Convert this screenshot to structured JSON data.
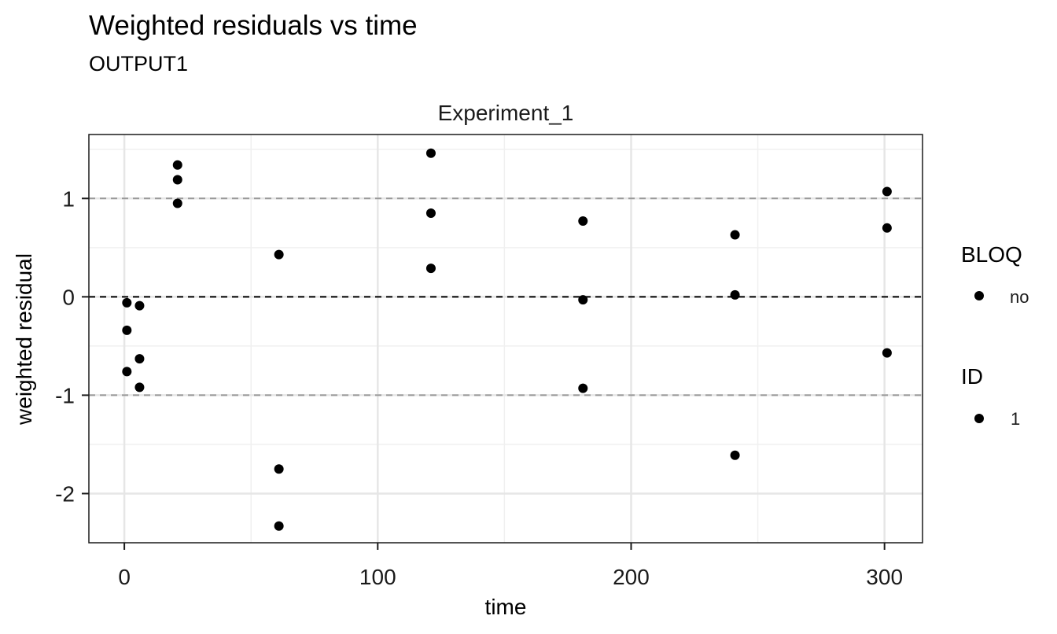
{
  "chart_data": {
    "type": "scatter",
    "title": "Weighted residuals vs time",
    "subtitle": "OUTPUT1",
    "facet_label": "Experiment_1",
    "xlabel": "time",
    "ylabel": "weighted residual",
    "xlim": [
      -14,
      315
    ],
    "ylim": [
      -2.5,
      1.65
    ],
    "x_ticks": [
      0,
      100,
      200,
      300
    ],
    "x_tick_labels": [
      "0",
      "100",
      "200",
      "300"
    ],
    "y_ticks": [
      1,
      0,
      -1,
      -2
    ],
    "y_tick_labels": [
      "1",
      "0",
      "-1",
      "-2"
    ],
    "grid": true,
    "reference_lines": [
      {
        "y": 1,
        "style": "dashed",
        "color": "#999999"
      },
      {
        "y": 0,
        "style": "dashed",
        "color": "#000000"
      },
      {
        "y": -1,
        "style": "dashed",
        "color": "#999999"
      }
    ],
    "point_color": "#000000",
    "legend_position": "right",
    "legends": [
      {
        "title": "BLOQ",
        "entries": [
          "no"
        ]
      },
      {
        "title": "ID",
        "entries": [
          "1"
        ]
      }
    ],
    "series": [
      {
        "points": [
          {
            "x": 1,
            "y": -0.06
          },
          {
            "x": 1,
            "y": -0.34
          },
          {
            "x": 1,
            "y": -0.76
          },
          {
            "x": 6,
            "y": -0.09
          },
          {
            "x": 6,
            "y": -0.63
          },
          {
            "x": 6,
            "y": -0.92
          },
          {
            "x": 21,
            "y": 1.34
          },
          {
            "x": 21,
            "y": 1.19
          },
          {
            "x": 21,
            "y": 0.95
          },
          {
            "x": 61,
            "y": 0.43
          },
          {
            "x": 61,
            "y": -1.75
          },
          {
            "x": 61,
            "y": -2.33
          },
          {
            "x": 121,
            "y": 1.46
          },
          {
            "x": 121,
            "y": 0.85
          },
          {
            "x": 121,
            "y": 0.29
          },
          {
            "x": 181,
            "y": 0.77
          },
          {
            "x": 181,
            "y": -0.03
          },
          {
            "x": 181,
            "y": -0.93
          },
          {
            "x": 241,
            "y": 0.63
          },
          {
            "x": 241,
            "y": 0.02
          },
          {
            "x": 241,
            "y": -1.61
          },
          {
            "x": 301,
            "y": 1.07
          },
          {
            "x": 301,
            "y": 0.7
          },
          {
            "x": 301,
            "y": -0.57
          }
        ]
      }
    ]
  }
}
